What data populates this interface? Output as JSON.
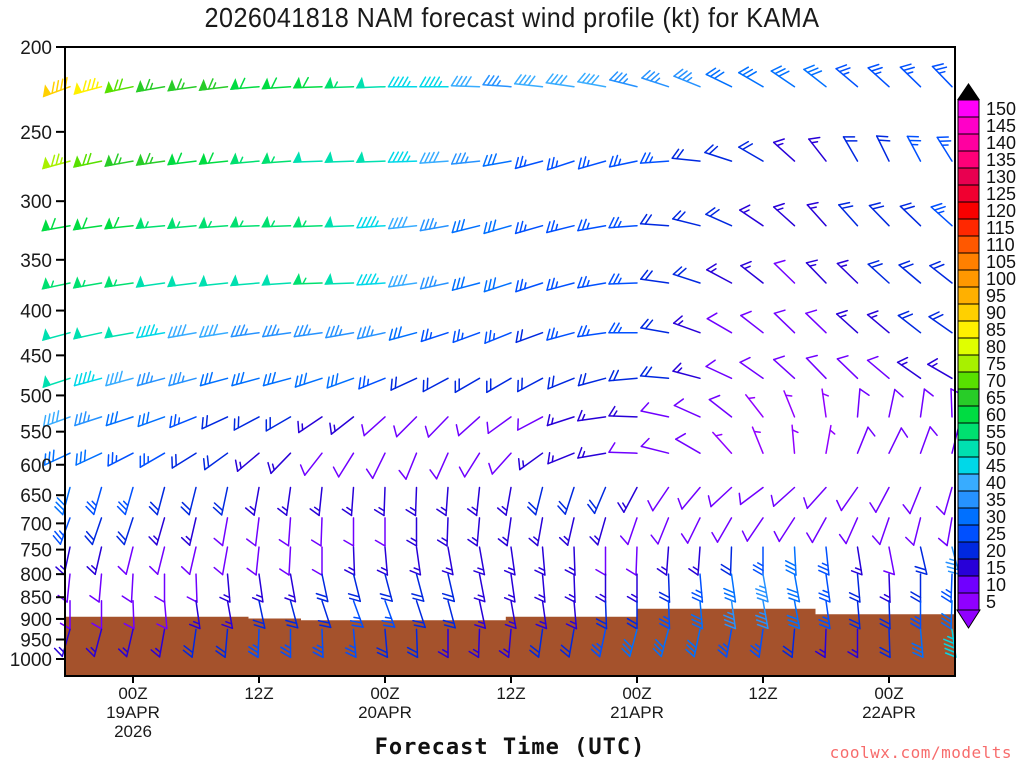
{
  "title": "2026041818 NAM forecast wind profile (kt) for KAMA",
  "watermark": "coolwx.com/modelts",
  "colors": {
    "ground": "#A5522C",
    "frame": "#000000",
    "text": "#1a1a1a",
    "watermark": "#f76c6c"
  },
  "chart_data": {
    "type": "wind-barb-time-height",
    "title": "2026041818 NAM forecast wind profile (kt) for KAMA",
    "xlabel": "Forecast Time (UTC)",
    "units": "kt",
    "y_scale": "log-pressure",
    "y_ticks": [
      200,
      250,
      300,
      350,
      400,
      450,
      500,
      550,
      600,
      650,
      700,
      750,
      800,
      850,
      900,
      950,
      1000
    ],
    "x_ticks": [
      {
        "hour": 6,
        "time": "00Z",
        "date": "19APR",
        "year": "2026"
      },
      {
        "hour": 18,
        "time": "12Z"
      },
      {
        "hour": 30,
        "time": "00Z",
        "date": "20APR"
      },
      {
        "hour": 42,
        "time": "12Z"
      },
      {
        "hour": 54,
        "time": "00Z",
        "date": "21APR"
      },
      {
        "hour": 66,
        "time": "12Z"
      },
      {
        "hour": 78,
        "time": "00Z",
        "date": "22APR"
      }
    ],
    "time_range_hours": [
      0,
      84
    ],
    "time_step_hours": 3,
    "levels_hpa": [
      222,
      270,
      320,
      372,
      424,
      478,
      529,
      582,
      637,
      690,
      745,
      800,
      858,
      925
    ],
    "barbs": {
      "speed_kt": [
        [
          90,
          85,
          70,
          65,
          65,
          65,
          60,
          60,
          60,
          55,
          50,
          45,
          45,
          40,
          35,
          40,
          40,
          40,
          35,
          35,
          35,
          30,
          30,
          30,
          30,
          25,
          25,
          25,
          25
        ],
        [
          75,
          70,
          65,
          65,
          60,
          60,
          55,
          55,
          50,
          50,
          50,
          45,
          40,
          35,
          30,
          25,
          25,
          25,
          25,
          25,
          20,
          20,
          20,
          15,
          15,
          20,
          20,
          25,
          25
        ],
        [
          60,
          60,
          60,
          55,
          55,
          55,
          55,
          55,
          55,
          50,
          45,
          40,
          35,
          30,
          30,
          25,
          25,
          25,
          25,
          20,
          20,
          20,
          15,
          15,
          15,
          20,
          20,
          20,
          25
        ],
        [
          55,
          55,
          55,
          50,
          50,
          50,
          50,
          50,
          55,
          50,
          45,
          40,
          35,
          30,
          30,
          25,
          25,
          25,
          25,
          20,
          20,
          15,
          15,
          10,
          15,
          15,
          20,
          20,
          20
        ],
        [
          50,
          50,
          50,
          45,
          40,
          40,
          35,
          35,
          35,
          35,
          35,
          30,
          25,
          25,
          25,
          20,
          25,
          25,
          25,
          20,
          15,
          10,
          10,
          10,
          10,
          15,
          15,
          20,
          20
        ],
        [
          50,
          45,
          40,
          35,
          35,
          30,
          30,
          30,
          30,
          30,
          25,
          20,
          20,
          20,
          20,
          20,
          20,
          20,
          20,
          20,
          15,
          10,
          10,
          10,
          10,
          10,
          10,
          15,
          15
        ],
        [
          40,
          35,
          30,
          30,
          25,
          20,
          20,
          20,
          15,
          15,
          10,
          10,
          10,
          10,
          10,
          10,
          15,
          15,
          15,
          10,
          10,
          10,
          5,
          5,
          5,
          10,
          10,
          10,
          10
        ],
        [
          30,
          30,
          25,
          25,
          20,
          20,
          15,
          15,
          10,
          10,
          10,
          10,
          10,
          10,
          10,
          15,
          15,
          15,
          10,
          10,
          10,
          5,
          5,
          5,
          5,
          10,
          10,
          10,
          10
        ],
        [
          30,
          25,
          25,
          20,
          20,
          20,
          15,
          15,
          15,
          15,
          15,
          15,
          15,
          15,
          15,
          20,
          20,
          20,
          15,
          10,
          10,
          10,
          10,
          10,
          10,
          10,
          10,
          10,
          10
        ],
        [
          25,
          20,
          20,
          15,
          15,
          10,
          10,
          10,
          10,
          10,
          10,
          15,
          15,
          15,
          15,
          15,
          15,
          15,
          10,
          10,
          10,
          10,
          10,
          10,
          10,
          10,
          10,
          10,
          10
        ],
        [
          15,
          15,
          10,
          10,
          10,
          10,
          10,
          10,
          10,
          15,
          15,
          15,
          15,
          15,
          15,
          15,
          15,
          10,
          10,
          15,
          15,
          20,
          25,
          30,
          25,
          15,
          10,
          20,
          35
        ],
        [
          10,
          10,
          10,
          10,
          10,
          15,
          15,
          15,
          20,
          20,
          20,
          20,
          20,
          15,
          15,
          15,
          15,
          15,
          15,
          20,
          25,
          30,
          35,
          30,
          25,
          20,
          15,
          20,
          25
        ],
        [
          10,
          10,
          10,
          10,
          15,
          15,
          20,
          20,
          20,
          25,
          25,
          20,
          20,
          15,
          15,
          15,
          15,
          20,
          20,
          25,
          30,
          35,
          35,
          30,
          25,
          20,
          20,
          25,
          30
        ],
        [
          15,
          15,
          15,
          15,
          20,
          20,
          25,
          25,
          25,
          25,
          20,
          20,
          15,
          15,
          15,
          20,
          20,
          25,
          30,
          30,
          30,
          25,
          25,
          20,
          15,
          15,
          20,
          30,
          45
        ]
      ],
      "dir_deg": [
        [
          250,
          255,
          258,
          260,
          262,
          263,
          265,
          266,
          268,
          268,
          268,
          270,
          270,
          272,
          274,
          276,
          278,
          280,
          284,
          288,
          292,
          296,
          300,
          304,
          308,
          310,
          312,
          314,
          316
        ],
        [
          255,
          258,
          260,
          262,
          263,
          264,
          265,
          266,
          268,
          268,
          268,
          268,
          266,
          264,
          260,
          255,
          252,
          254,
          258,
          266,
          276,
          288,
          300,
          312,
          322,
          330,
          334,
          332,
          328
        ],
        [
          260,
          262,
          264,
          265,
          265,
          266,
          268,
          268,
          268,
          268,
          266,
          264,
          260,
          256,
          254,
          254,
          256,
          260,
          266,
          274,
          284,
          294,
          304,
          312,
          318,
          318,
          316,
          314,
          312
        ],
        [
          258,
          260,
          262,
          262,
          263,
          264,
          265,
          266,
          268,
          268,
          266,
          262,
          258,
          255,
          252,
          252,
          255,
          260,
          268,
          278,
          288,
          298,
          308,
          314,
          316,
          314,
          312,
          310,
          308
        ],
        [
          255,
          258,
          260,
          260,
          260,
          261,
          262,
          262,
          262,
          260,
          258,
          255,
          252,
          250,
          248,
          250,
          255,
          262,
          270,
          280,
          290,
          300,
          308,
          314,
          314,
          312,
          310,
          308,
          305
        ],
        [
          252,
          255,
          255,
          255,
          255,
          255,
          255,
          255,
          252,
          250,
          248,
          245,
          242,
          240,
          240,
          242,
          248,
          255,
          265,
          275,
          285,
          295,
          305,
          312,
          316,
          314,
          310,
          305,
          300
        ],
        [
          250,
          252,
          252,
          250,
          248,
          245,
          242,
          240,
          236,
          232,
          228,
          225,
          224,
          228,
          234,
          242,
          252,
          262,
          272,
          282,
          294,
          308,
          322,
          338,
          352,
          5,
          12,
          8,
          358
        ],
        [
          245,
          245,
          243,
          240,
          238,
          234,
          230,
          224,
          218,
          212,
          206,
          202,
          204,
          212,
          222,
          234,
          248,
          260,
          272,
          284,
          300,
          318,
          338,
          355,
          10,
          22,
          26,
          20,
          14
        ],
        [
          195,
          196,
          196,
          195,
          194,
          192,
          190,
          188,
          186,
          184,
          182,
          182,
          184,
          186,
          190,
          194,
          198,
          203,
          208,
          214,
          220,
          227,
          233,
          228,
          222,
          215,
          208,
          202,
          196
        ],
        [
          200,
          199,
          198,
          196,
          193,
          190,
          187,
          184,
          182,
          180,
          180,
          180,
          182,
          185,
          188,
          190,
          193,
          196,
          199,
          202,
          206,
          210,
          214,
          213,
          209,
          204,
          199,
          194,
          190
        ],
        [
          192,
          193,
          194,
          194,
          193,
          190,
          186,
          183,
          180,
          178,
          175,
          172,
          170,
          170,
          172,
          175,
          178,
          180,
          182,
          184,
          184,
          182,
          180,
          177,
          174,
          171,
          169,
          167,
          165
        ],
        [
          186,
          185,
          183,
          180,
          178,
          175,
          172,
          170,
          168,
          166,
          165,
          165,
          167,
          169,
          172,
          175,
          178,
          180,
          180,
          178,
          175,
          172,
          170,
          170,
          172,
          175,
          178,
          180,
          182
        ],
        [
          180,
          180,
          178,
          175,
          172,
          170,
          168,
          165,
          162,
          160,
          160,
          162,
          165,
          168,
          170,
          172,
          175,
          178,
          180,
          178,
          175,
          172,
          170,
          170,
          172,
          175,
          178,
          180,
          182
        ],
        [
          196,
          195,
          193,
          190,
          188,
          185,
          182,
          180,
          178,
          175,
          175,
          178,
          180,
          182,
          185,
          188,
          190,
          192,
          195,
          195,
          192,
          190,
          188,
          185,
          182,
          180,
          178,
          175,
          172
        ]
      ]
    },
    "colorbar": {
      "bins": [
        5,
        10,
        15,
        20,
        25,
        30,
        35,
        40,
        45,
        50,
        55,
        60,
        65,
        70,
        75,
        80,
        85,
        90,
        95,
        100,
        105,
        110,
        115,
        120,
        125,
        130,
        135,
        140,
        145,
        150
      ],
      "colors": [
        "#9000FF",
        "#7000FF",
        "#2800D8",
        "#0028E0",
        "#0050FF",
        "#0070FF",
        "#2692FF",
        "#38ACFF",
        "#00D8E8",
        "#00E0B0",
        "#00E070",
        "#00DC42",
        "#28CC28",
        "#58E000",
        "#A8F000",
        "#E0FF00",
        "#FFF000",
        "#FFD000",
        "#FFB000",
        "#FF9800",
        "#FF8000",
        "#FF5800",
        "#FF2800",
        "#F80000",
        "#F00030",
        "#E80050",
        "#FF0078",
        "#FF00A0",
        "#FF00C8",
        "#FF00FA"
      ]
    },
    "terrain": {
      "segments": [
        {
          "t0": 0,
          "t1": 17,
          "p": 895
        },
        {
          "t0": 17,
          "t1": 22,
          "p": 899
        },
        {
          "t0": 22,
          "t1": 41.5,
          "p": 903
        },
        {
          "t0": 41.5,
          "t1": 54,
          "p": 895
        },
        {
          "t0": 54,
          "t1": 71,
          "p": 876
        },
        {
          "t0": 71,
          "t1": 84,
          "p": 889
        }
      ]
    }
  }
}
